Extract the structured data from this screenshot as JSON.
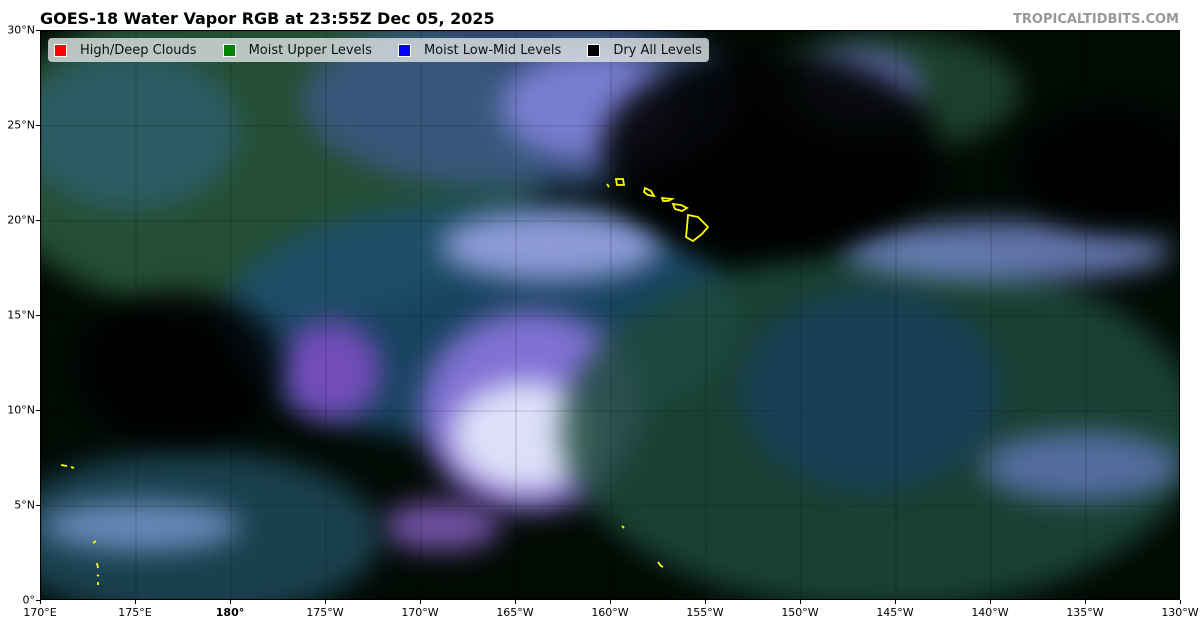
{
  "title": "GOES-18 Water Vapor RGB at 23:55Z Dec 05, 2025",
  "credit": "TROPICALTIDBITS.COM",
  "legend": [
    {
      "label": "High/Deep Clouds",
      "color": "#ff0000"
    },
    {
      "label": "Moist Upper Levels",
      "color": "#008000"
    },
    {
      "label": "Moist Low-Mid Levels",
      "color": "#0000ff"
    },
    {
      "label": "Dry All Levels",
      "color": "#000000"
    }
  ],
  "x_axis": {
    "ticks": [
      "170°E",
      "175°E",
      "180°",
      "175°W",
      "170°W",
      "165°W",
      "160°W",
      "155°W",
      "150°W",
      "145°W",
      "140°W",
      "135°W",
      "130°W"
    ]
  },
  "y_axis": {
    "ticks": [
      "0°",
      "5°N",
      "10°N",
      "15°N",
      "20°N",
      "25°N",
      "30°N"
    ]
  },
  "coastline_color": "#ffff00"
}
